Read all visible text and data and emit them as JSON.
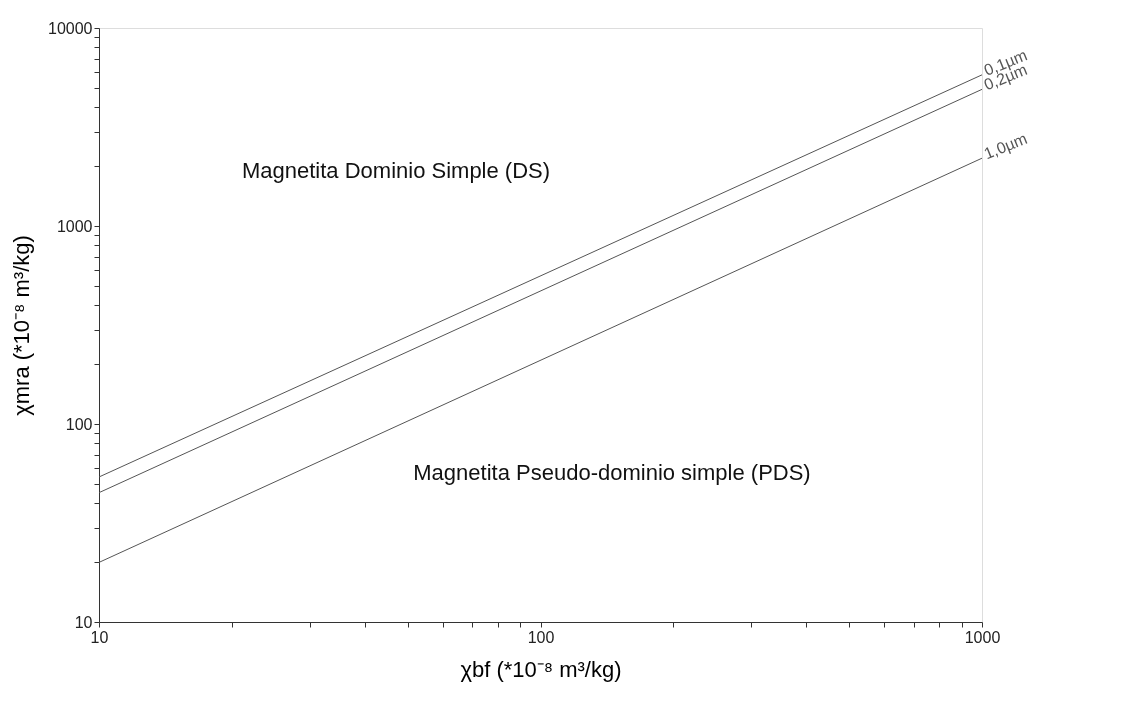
{
  "chart_data": {
    "type": "line",
    "xlabel": "χbf (*10⁻⁸ m³/kg)",
    "ylabel": "χmra (*10⁻⁸ m³/kg)",
    "x": [
      10,
      1000
    ],
    "series": [
      {
        "name": "0,1µm",
        "color": "#555555",
        "values": [
          54,
          5800
        ]
      },
      {
        "name": "0,2µm",
        "color": "#555555",
        "values": [
          45,
          4900
        ]
      },
      {
        "name": "1,0µm",
        "color": "#555555",
        "values": [
          20,
          2200
        ]
      }
    ],
    "log": "xy",
    "xlim": [
      10,
      1000
    ],
    "ylim": [
      10,
      10000
    ],
    "xticks": [
      10,
      {
        "value": 20,
        "label": null
      },
      {
        "value": 30,
        "label": null
      },
      {
        "value": 40,
        "label": null
      },
      {
        "value": 50,
        "label": null
      },
      {
        "value": 60,
        "label": null
      },
      {
        "value": 70,
        "label": null
      },
      {
        "value": 80,
        "label": null
      },
      {
        "value": 90,
        "label": null
      },
      100,
      {
        "value": 200,
        "label": null
      },
      {
        "value": 300,
        "label": null
      },
      {
        "value": 400,
        "label": null
      },
      {
        "value": 500,
        "label": null
      },
      {
        "value": 600,
        "label": null
      },
      {
        "value": 700,
        "label": null
      },
      {
        "value": 800,
        "label": null
      },
      {
        "value": 900,
        "label": null
      },
      1000
    ],
    "yticks": [
      10,
      {
        "value": 20,
        "label": null
      },
      {
        "value": 30,
        "label": null
      },
      {
        "value": 40,
        "label": null
      },
      {
        "value": 50,
        "label": null
      },
      {
        "value": 60,
        "label": null
      },
      {
        "value": 70,
        "label": null
      },
      {
        "value": 80,
        "label": null
      },
      {
        "value": 90,
        "label": null
      },
      100,
      {
        "value": 200,
        "label": null
      },
      {
        "value": 300,
        "label": null
      },
      {
        "value": 400,
        "label": null
      },
      {
        "value": 500,
        "label": null
      },
      {
        "value": 600,
        "label": null
      },
      {
        "value": 700,
        "label": null
      },
      {
        "value": 800,
        "label": null
      },
      {
        "value": 900,
        "label": null
      },
      1000,
      {
        "value": 2000,
        "label": null
      },
      {
        "value": 3000,
        "label": null
      },
      {
        "value": 4000,
        "label": null
      },
      {
        "value": 5000,
        "label": null
      },
      {
        "value": 6000,
        "label": null
      },
      {
        "value": 7000,
        "label": null
      },
      {
        "value": 8000,
        "label": null
      },
      {
        "value": 9000,
        "label": null
      },
      10000
    ],
    "grid": false,
    "legend": false,
    "marker": "none",
    "line_style": "solid",
    "annotations": [
      "Magnetita Dominio Simple (DS)",
      "Magnetita Pseudo-dominio simple (PDS)"
    ]
  }
}
